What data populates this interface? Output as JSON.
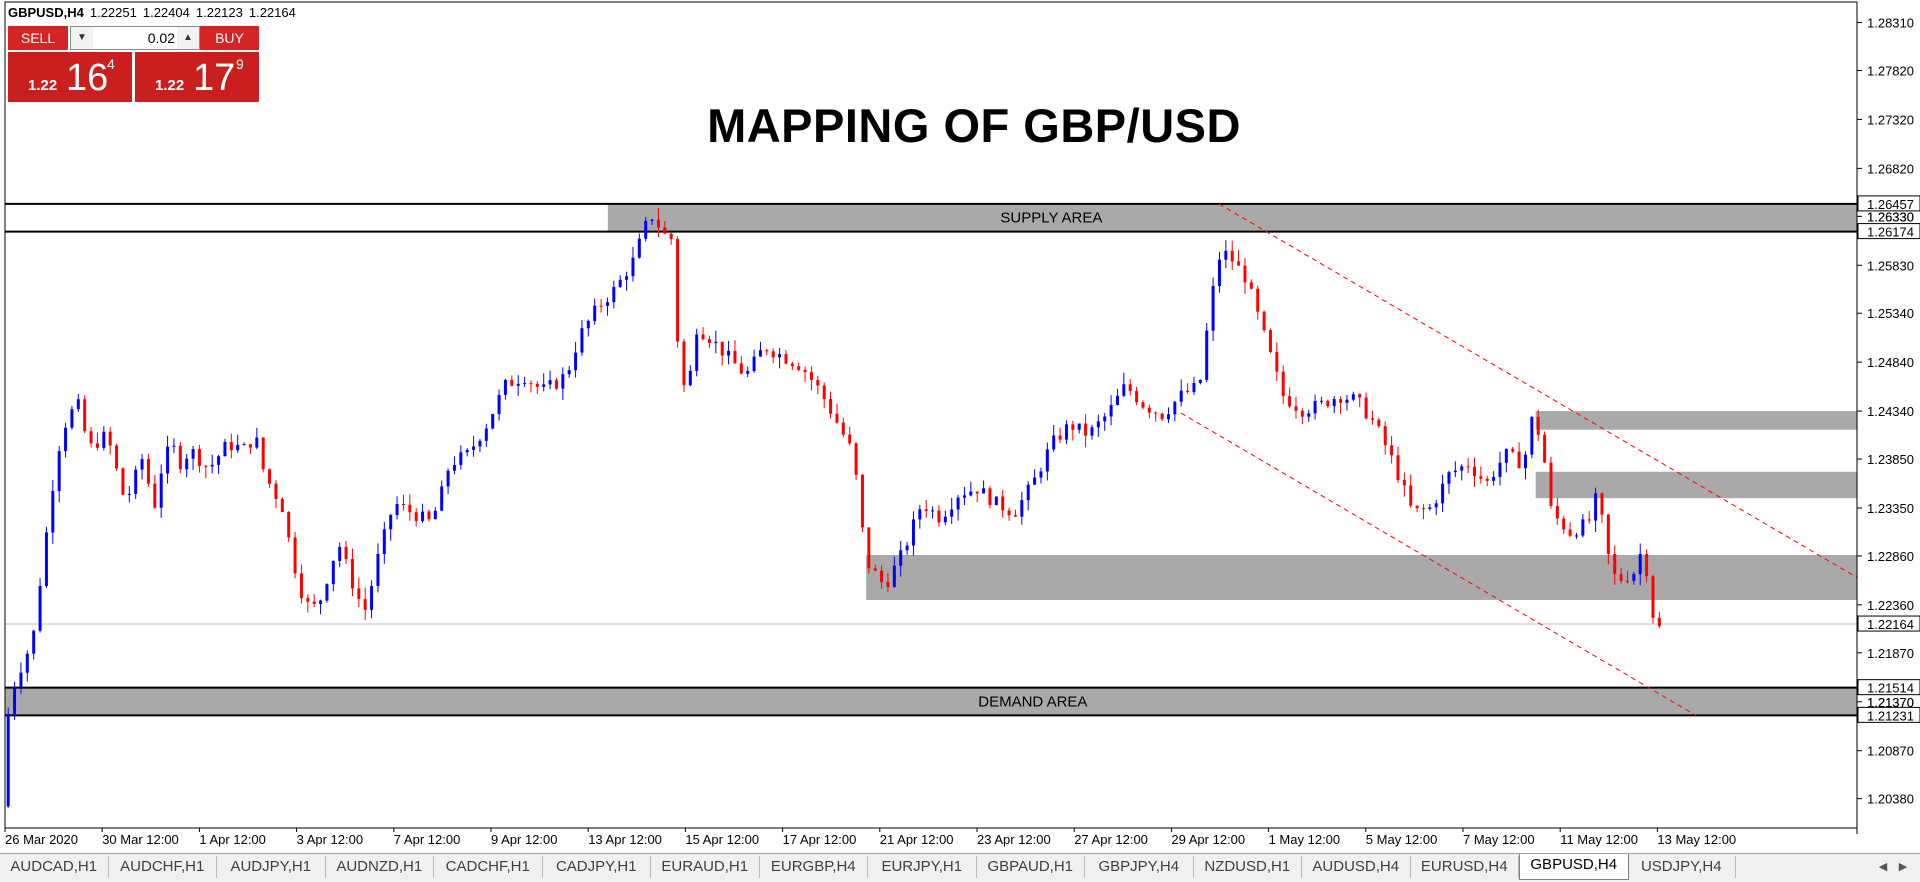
{
  "symbol_info": {
    "symbol": "GBPUSD,H4",
    "open": "1.22251",
    "high": "1.22404",
    "low": "1.22123",
    "close": "1.22164"
  },
  "trade_panel": {
    "sell_label": "SELL",
    "buy_label": "BUY",
    "lot_value": "0.02",
    "sell_price": {
      "small": "1.22",
      "big": "16",
      "sup": "4"
    },
    "buy_price": {
      "small": "1.22",
      "big": "17",
      "sup": "9"
    },
    "colors": {
      "button": "#d42424",
      "panel": "#c91f1f"
    }
  },
  "chart_title": "MAPPING OF GBP/USD",
  "chart_data": {
    "type": "candlestick",
    "symbol": "GBPUSD",
    "timeframe": "H4",
    "y_range": [
      1.2008,
      1.2852
    ],
    "y_ticks": [
      "1.28310",
      "1.27820",
      "1.27320",
      "1.26820",
      "1.26330",
      "1.25830",
      "1.25340",
      "1.24840",
      "1.24340",
      "1.23850",
      "1.23350",
      "1.22860",
      "1.22360",
      "1.21870",
      "1.21370",
      "1.20870",
      "1.20380"
    ],
    "x_labels": [
      "26 Mar 2020",
      "30 Mar 12:00",
      "1 Apr 12:00",
      "3 Apr 12:00",
      "7 Apr 12:00",
      "9 Apr 12:00",
      "13 Apr 12:00",
      "15 Apr 12:00",
      "17 Apr 12:00",
      "21 Apr 12:00",
      "23 Apr 12:00",
      "27 Apr 12:00",
      "29 Apr 12:00",
      "1 May 12:00",
      "5 May 12:00",
      "7 May 12:00",
      "11 May 12:00",
      "13 May 12:00"
    ],
    "price_labels": [
      {
        "price": 1.26457,
        "text": "1.26457",
        "style": "boxed"
      },
      {
        "price": 1.2633,
        "text": "1.26330",
        "style": "plain"
      },
      {
        "price": 1.26174,
        "text": "1.26174",
        "style": "boxed"
      },
      {
        "price": 1.22164,
        "text": "1.22164",
        "style": "boxed"
      },
      {
        "price": 1.21514,
        "text": "1.21514",
        "style": "boxed"
      },
      {
        "price": 1.2137,
        "text": "1.21370",
        "style": "plain"
      },
      {
        "price": 1.21231,
        "text": "1.21231",
        "style": "boxed"
      }
    ],
    "horizontal_lines": [
      1.26457,
      1.26174,
      1.21514,
      1.21231
    ],
    "current_price": 1.22164,
    "zones": [
      {
        "label": "SUPPLY AREA",
        "top": 1.26457,
        "bottom": 1.26174,
        "x_start": 0.3255
      },
      {
        "label": "",
        "top": 1.2434,
        "bottom": 1.2415,
        "x_start": 0.8265
      },
      {
        "label": "",
        "top": 1.2372,
        "bottom": 1.2345,
        "x_start": 0.8265
      },
      {
        "label": "",
        "top": 1.2287,
        "bottom": 1.2241,
        "x_start": 0.465
      },
      {
        "label": "DEMAND AREA",
        "top": 1.21514,
        "bottom": 1.21231,
        "x_start": 0.0
      }
    ],
    "trendlines": [
      {
        "x1": 0.6555,
        "y1": 1.26457,
        "x2": 1.0,
        "y2": 1.2264
      },
      {
        "x1": 0.635,
        "y1": 1.2432,
        "x2": 0.913,
        "y2": 1.21231
      }
    ],
    "colors": {
      "bull": "#0000ff",
      "bear": "#ff0000",
      "zone": "#a9a9a9",
      "trendline": "#ff0000"
    },
    "anchors": [
      [
        0.0,
        1.203
      ],
      [
        0.002,
        1.214
      ],
      [
        0.008,
        1.217
      ],
      [
        0.015,
        1.22
      ],
      [
        0.02,
        1.2275
      ],
      [
        0.028,
        1.239
      ],
      [
        0.034,
        1.243
      ],
      [
        0.04,
        1.244
      ],
      [
        0.045,
        1.2395
      ],
      [
        0.055,
        1.241
      ],
      [
        0.065,
        1.234
      ],
      [
        0.075,
        1.239
      ],
      [
        0.08,
        1.233
      ],
      [
        0.085,
        1.238
      ],
      [
        0.09,
        1.24
      ],
      [
        0.095,
        1.238
      ],
      [
        0.1,
        1.2395
      ],
      [
        0.11,
        1.2375
      ],
      [
        0.12,
        1.24
      ],
      [
        0.13,
        1.2395
      ],
      [
        0.135,
        1.241
      ],
      [
        0.14,
        1.237
      ],
      [
        0.15,
        1.2335
      ],
      [
        0.155,
        1.2285
      ],
      [
        0.16,
        1.225
      ],
      [
        0.165,
        1.223
      ],
      [
        0.17,
        1.224
      ],
      [
        0.175,
        1.227
      ],
      [
        0.18,
        1.23
      ],
      [
        0.19,
        1.2245
      ],
      [
        0.195,
        1.223
      ],
      [
        0.2,
        1.2275
      ],
      [
        0.21,
        1.234
      ],
      [
        0.22,
        1.233
      ],
      [
        0.23,
        1.232
      ],
      [
        0.235,
        1.2345
      ],
      [
        0.24,
        1.238
      ],
      [
        0.25,
        1.239
      ],
      [
        0.26,
        1.242
      ],
      [
        0.27,
        1.246
      ],
      [
        0.28,
        1.247
      ],
      [
        0.29,
        1.2455
      ],
      [
        0.3,
        1.2465
      ],
      [
        0.305,
        1.248
      ],
      [
        0.31,
        1.251
      ],
      [
        0.32,
        1.254
      ],
      [
        0.33,
        1.256
      ],
      [
        0.34,
        1.259
      ],
      [
        0.345,
        1.262
      ],
      [
        0.35,
        1.2635
      ],
      [
        0.355,
        1.2615
      ],
      [
        0.36,
        1.261
      ],
      [
        0.363,
        1.251
      ],
      [
        0.368,
        1.244
      ],
      [
        0.373,
        1.252
      ],
      [
        0.38,
        1.251
      ],
      [
        0.39,
        1.249
      ],
      [
        0.4,
        1.247
      ],
      [
        0.41,
        1.25
      ],
      [
        0.42,
        1.249
      ],
      [
        0.43,
        1.248
      ],
      [
        0.44,
        1.2455
      ],
      [
        0.45,
        1.242
      ],
      [
        0.458,
        1.239
      ],
      [
        0.465,
        1.228
      ],
      [
        0.475,
        1.2255
      ],
      [
        0.485,
        1.229
      ],
      [
        0.495,
        1.234
      ],
      [
        0.505,
        1.2325
      ],
      [
        0.515,
        1.235
      ],
      [
        0.525,
        1.2355
      ],
      [
        0.535,
        1.234
      ],
      [
        0.545,
        1.233
      ],
      [
        0.555,
        1.236
      ],
      [
        0.565,
        1.24
      ],
      [
        0.575,
        1.242
      ],
      [
        0.585,
        1.241
      ],
      [
        0.595,
        1.243
      ],
      [
        0.605,
        1.246
      ],
      [
        0.615,
        1.244
      ],
      [
        0.625,
        1.243
      ],
      [
        0.635,
        1.245
      ],
      [
        0.645,
        1.246
      ],
      [
        0.65,
        1.253
      ],
      [
        0.655,
        1.259
      ],
      [
        0.66,
        1.2595
      ],
      [
        0.67,
        1.257
      ],
      [
        0.68,
        1.251
      ],
      [
        0.69,
        1.245
      ],
      [
        0.7,
        1.2435
      ],
      [
        0.71,
        1.244
      ],
      [
        0.72,
        1.245
      ],
      [
        0.73,
        1.2445
      ],
      [
        0.74,
        1.242
      ],
      [
        0.75,
        1.238
      ],
      [
        0.76,
        1.233
      ],
      [
        0.77,
        1.2335
      ],
      [
        0.78,
        1.237
      ],
      [
        0.79,
        1.238
      ],
      [
        0.8,
        1.236
      ],
      [
        0.81,
        1.239
      ],
      [
        0.82,
        1.238
      ],
      [
        0.825,
        1.243
      ],
      [
        0.83,
        1.24
      ],
      [
        0.835,
        1.233
      ],
      [
        0.845,
        1.231
      ],
      [
        0.855,
        1.232
      ],
      [
        0.86,
        1.235
      ],
      [
        0.865,
        1.229
      ],
      [
        0.87,
        1.226
      ],
      [
        0.88,
        1.227
      ],
      [
        0.885,
        1.23
      ],
      [
        0.888,
        1.224
      ],
      [
        0.892,
        1.221
      ],
      [
        0.895,
        1.2215
      ]
    ]
  },
  "tabs": {
    "items": [
      "AUDCAD,H1",
      "AUDCHF,H1",
      "AUDJPY,H1",
      "AUDNZD,H1",
      "CADCHF,H1",
      "CADJPY,H1",
      "EURAUD,H1",
      "EURGBP,H4",
      "EURJPY,H1",
      "GBPAUD,H1",
      "GBPJPY,H4",
      "NZDUSD,H1",
      "AUDUSD,H4",
      "EURUSD,H4",
      "GBPUSD,H4",
      "USDJPY,H4"
    ],
    "active": "GBPUSD,H4"
  }
}
